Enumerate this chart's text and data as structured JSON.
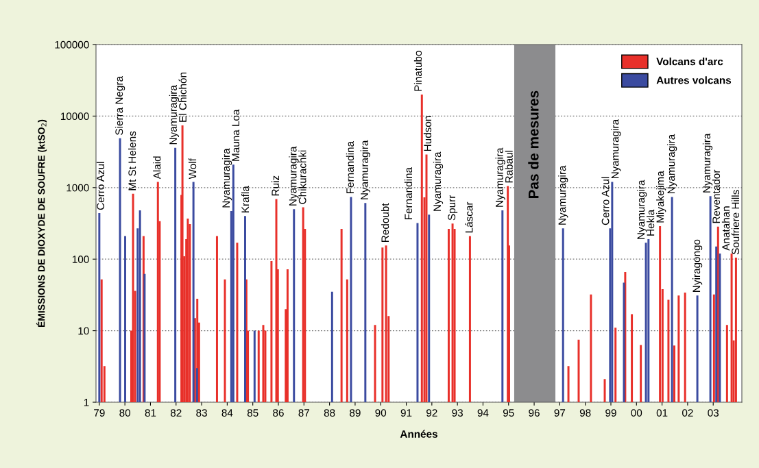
{
  "chart_data": {
    "type": "bar",
    "xlabel": "Années",
    "ylabel": "ÉMISSIONS DE DIOXYDE DE SOUFRE (ktSO$_{2}$)",
    "log": "y",
    "grid": "y",
    "legend": "top right",
    "xlim": [
      1978.87,
      2004.12
    ],
    "ylim": [
      1,
      100000
    ],
    "xticks": [
      {
        "value": 1979,
        "label": "79"
      },
      {
        "value": 1980,
        "label": "80"
      },
      {
        "value": 1981,
        "label": "81"
      },
      {
        "value": 1982,
        "label": "82"
      },
      {
        "value": 1983,
        "label": "83"
      },
      {
        "value": 1984,
        "label": "84"
      },
      {
        "value": 1985,
        "label": "85"
      },
      {
        "value": 1986,
        "label": "86"
      },
      {
        "value": 1987,
        "label": "87"
      },
      {
        "value": 1988,
        "label": "88"
      },
      {
        "value": 1989,
        "label": "89"
      },
      {
        "value": 1990,
        "label": "90"
      },
      {
        "value": 1991,
        "label": "91"
      },
      {
        "value": 1992,
        "label": "92"
      },
      {
        "value": 1993,
        "label": "93"
      },
      {
        "value": 1994,
        "label": "94"
      },
      {
        "value": 1995,
        "label": "95"
      },
      {
        "value": 1996,
        "label": "96"
      },
      {
        "value": 1997,
        "label": "97"
      },
      {
        "value": 1998,
        "label": "98"
      },
      {
        "value": 1999,
        "label": "99"
      },
      {
        "value": 2000,
        "label": "00"
      },
      {
        "value": 2001,
        "label": "01"
      },
      {
        "value": 2002,
        "label": "02"
      },
      {
        "value": 2003,
        "label": "03"
      }
    ],
    "yticks": [
      1,
      10,
      100,
      1000,
      10000,
      100000
    ],
    "bands": [
      {
        "axis": "x",
        "from": 1995.22,
        "to": 1996.83,
        "label": "Pas de mesures",
        "color": "#8c8c8e"
      }
    ],
    "series": [
      {
        "name": "Volcans d'arc",
        "color": "#e8302a",
        "x": [
          1979.09,
          1979.2,
          1980.25,
          1980.32,
          1980.4,
          1980.73,
          1981.29,
          1981.36,
          1982.21,
          1982.25,
          1982.32,
          1982.4,
          1982.46,
          1982.54,
          1982.74,
          1982.83,
          1982.9,
          1983.6,
          1983.91,
          1984.39,
          1984.75,
          1984.81,
          1985.23,
          1985.41,
          1985.49,
          1985.73,
          1985.92,
          1985.98,
          1986.29,
          1986.36,
          1986.97,
          1987.04,
          1988.47,
          1988.69,
          1989.78,
          1990.07,
          1990.21,
          1990.31,
          1991.61,
          1991.71,
          1991.79,
          1992.66,
          1992.81,
          1992.89,
          1993.49,
          1994.97,
          1995.02,
          1997.34,
          1997.74,
          1998.22,
          1998.76,
          1999.18,
          1999.56,
          1999.82,
          2000.17,
          2000.92,
          2001.02,
          2001.25,
          2001.48,
          2001.65,
          2001.9,
          2003.03,
          2003.19,
          2003.54,
          2003.72,
          2003.8,
          2003.89
        ],
        "values": [
          52,
          3.2,
          10,
          820,
          36,
          210,
          1200,
          340,
          790,
          7400,
          110,
          190,
          370,
          310,
          15,
          28,
          13,
          210,
          52,
          170,
          52,
          10,
          10,
          12,
          10,
          94,
          690,
          72,
          20,
          72,
          530,
          265,
          265,
          52,
          12,
          145,
          155,
          16,
          20000,
          730,
          2900,
          265,
          315,
          265,
          210,
          1050,
          155,
          3.2,
          7.5,
          32,
          2.1,
          11,
          66,
          17,
          6.3,
          290,
          38,
          27,
          6.2,
          31,
          34,
          32,
          285,
          12,
          120,
          7.3,
          105
        ]
      },
      {
        "name": "Autres volcans",
        "color": "#3b4ba0",
        "x": [
          1979.0,
          1979.81,
          1980.01,
          1980.5,
          1980.59,
          1980.77,
          1981.97,
          1982.68,
          1982.82,
          1984.16,
          1984.24,
          1984.7,
          1985.07,
          1986.61,
          1988.1,
          1988.84,
          1989.4,
          1991.44,
          1991.89,
          1994.76,
          1997.13,
          1998.97,
          1999.05,
          1999.51,
          2000.37,
          2000.47,
          2001.39,
          2002.38,
          2002.89,
          2003.12,
          2003.26
        ],
        "values": [
          440,
          4900,
          210,
          270,
          480,
          62,
          3600,
          1200,
          3,
          470,
          2100,
          400,
          10,
          500,
          35,
          740,
          610,
          320,
          420,
          480,
          270,
          270,
          1200,
          47,
          170,
          190,
          740,
          31,
          760,
          150,
          120
        ]
      }
    ],
    "annotations": [
      {
        "text": "Cerro Azul",
        "x": 1979.0,
        "y": 440
      },
      {
        "text": "Sierra Negra",
        "x": 1979.81,
        "y": 4900
      },
      {
        "text": "Mt St Helens",
        "x": 1980.32,
        "y": 820
      },
      {
        "text": "Alaid",
        "x": 1981.29,
        "y": 1200
      },
      {
        "text": "Nyamuragira",
        "x": 1981.97,
        "y": 3600
      },
      {
        "text": "El Chichón",
        "x": 1982.25,
        "y": 7400
      },
      {
        "text": "Wolf",
        "x": 1982.68,
        "y": 1200
      },
      {
        "text": "Nyamuragira",
        "x": 1984.16,
        "y": 470
      },
      {
        "text": "Mauna Loa",
        "x": 1984.24,
        "y": 2100
      },
      {
        "text": "Krafla",
        "x": 1984.7,
        "y": 400
      },
      {
        "text": "Ruiz",
        "x": 1985.92,
        "y": 690
      },
      {
        "text": "Nyamuragira",
        "x": 1986.61,
        "y": 500
      },
      {
        "text": "Chikurachki",
        "x": 1986.97,
        "y": 530
      },
      {
        "text": "Fernandina",
        "x": 1988.84,
        "y": 740
      },
      {
        "text": "Nyamuragira",
        "x": 1989.4,
        "y": 610
      },
      {
        "text": "Redoubt",
        "x": 1990.21,
        "y": 155
      },
      {
        "text": "Fernandina",
        "x": 1991.44,
        "y": 320
      },
      {
        "text": "Pinatubo",
        "x": 1991.61,
        "y": 20000
      },
      {
        "text": "Hudson",
        "x": 1991.79,
        "y": 2900
      },
      {
        "text": "Nyamuragira",
        "x": 1991.89,
        "y": 420
      },
      {
        "text": "Spurr",
        "x": 1992.81,
        "y": 315
      },
      {
        "text": "Láscar",
        "x": 1993.49,
        "y": 210
      },
      {
        "text": "Nyamuragira",
        "x": 1994.76,
        "y": 480
      },
      {
        "text": "Rabaul",
        "x": 1994.97,
        "y": 1050
      },
      {
        "text": "Nyamuragira",
        "x": 1997.13,
        "y": 270
      },
      {
        "text": "Cerro Azul",
        "x": 1998.97,
        "y": 270
      },
      {
        "text": "Nyamuragira",
        "x": 1999.05,
        "y": 1200
      },
      {
        "text": "Nyamuragira",
        "x": 2000.37,
        "y": 170
      },
      {
        "text": "Hekla",
        "x": 2000.47,
        "y": 190
      },
      {
        "text": "Miyakejima",
        "x": 2000.92,
        "y": 290
      },
      {
        "text": "Nyamuragira",
        "x": 2001.39,
        "y": 740
      },
      {
        "text": "Nyiragongo",
        "x": 2002.38,
        "y": 31
      },
      {
        "text": "Nyamuragira",
        "x": 2002.89,
        "y": 760
      },
      {
        "text": "Reventador",
        "x": 2003.19,
        "y": 285
      },
      {
        "text": "Anatahan",
        "x": 2003.72,
        "y": 120
      },
      {
        "text": "Soufriere Hills",
        "x": 2003.89,
        "y": 105
      }
    ]
  }
}
